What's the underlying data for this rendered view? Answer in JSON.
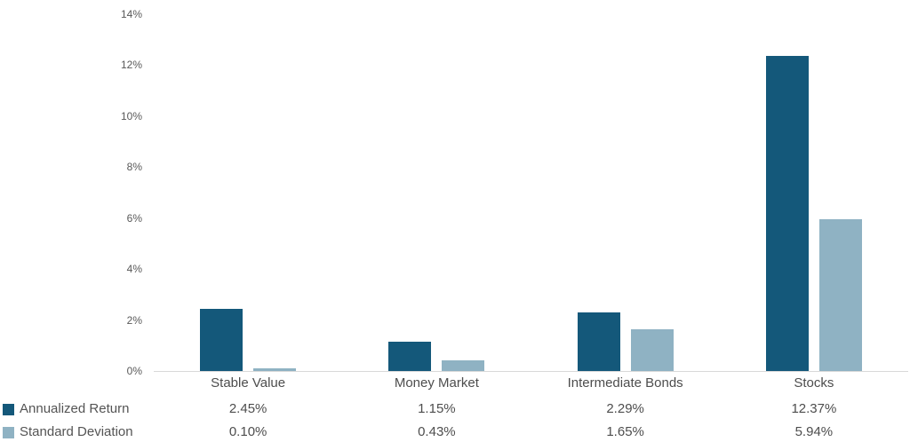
{
  "chart_data": {
    "type": "bar",
    "categories": [
      "Stable Value",
      "Money Market",
      "Intermediate Bonds",
      "Stocks"
    ],
    "series": [
      {
        "name": "Annualized Return",
        "values": [
          2.45,
          1.15,
          2.29,
          12.37
        ],
        "value_labels": [
          "2.45%",
          "1.15%",
          "2.29%",
          "12.37%"
        ],
        "color": "#14587a"
      },
      {
        "name": "Standard Deviation",
        "values": [
          0.1,
          0.43,
          1.65,
          5.94
        ],
        "value_labels": [
          "0.10%",
          "0.43%",
          "1.65%",
          "5.94%"
        ],
        "color": "#8fb2c3"
      }
    ],
    "ylim": [
      0,
      14
    ],
    "ytick_step": 2,
    "ytick_suffix": "%",
    "ytick_labels": [
      "0%",
      "2%",
      "4%",
      "6%",
      "8%",
      "10%",
      "12%",
      "14%"
    ],
    "grid": "baseline-only",
    "legend_position": "bottom-left",
    "axis_line_color": "#d9d9d9"
  }
}
